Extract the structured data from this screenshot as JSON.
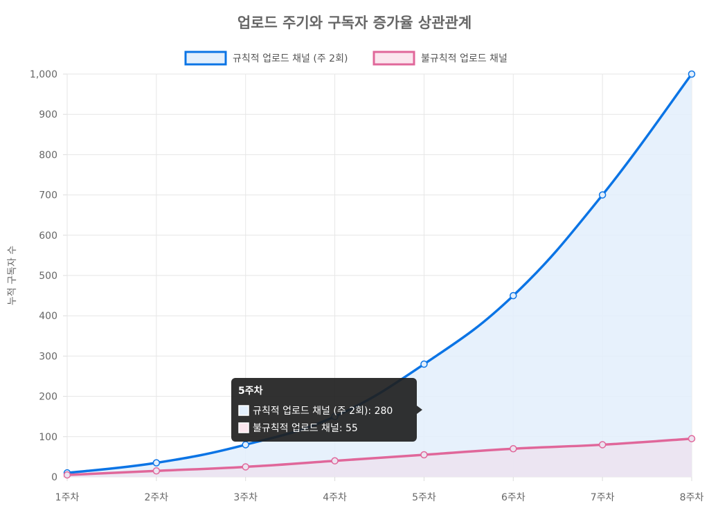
{
  "chart_data": {
    "type": "line",
    "title": "업로드 주기와 구독자 증가율 상관관계",
    "ylabel": "누적 구독자 수",
    "xlabel": "",
    "categories": [
      "1주차",
      "2주차",
      "3주차",
      "4주차",
      "5주차",
      "6주차",
      "7주차",
      "8주차"
    ],
    "ylim": [
      0,
      1000
    ],
    "yticks": [
      "0",
      "100",
      "200",
      "300",
      "400",
      "500",
      "600",
      "700",
      "800",
      "900",
      "1,000"
    ],
    "grid": true,
    "legend_position": "top",
    "series": [
      {
        "name": "규칙적 업로드 채널 (주 2회)",
        "values": [
          10,
          35,
          80,
          150,
          280,
          450,
          700,
          1000
        ],
        "color": "#0b74e5",
        "fill": "#e3effc"
      },
      {
        "name": "불규칙적 업로드 채널",
        "values": [
          5,
          15,
          25,
          40,
          55,
          70,
          80,
          95
        ],
        "color": "#e0679a",
        "fill": "#ece3f0"
      }
    ],
    "tooltip": {
      "title": "5주차",
      "lines": [
        "규칙적 업로드 채널 (주 2회): 280",
        "불규칙적 업로드 채널: 55"
      ]
    }
  }
}
